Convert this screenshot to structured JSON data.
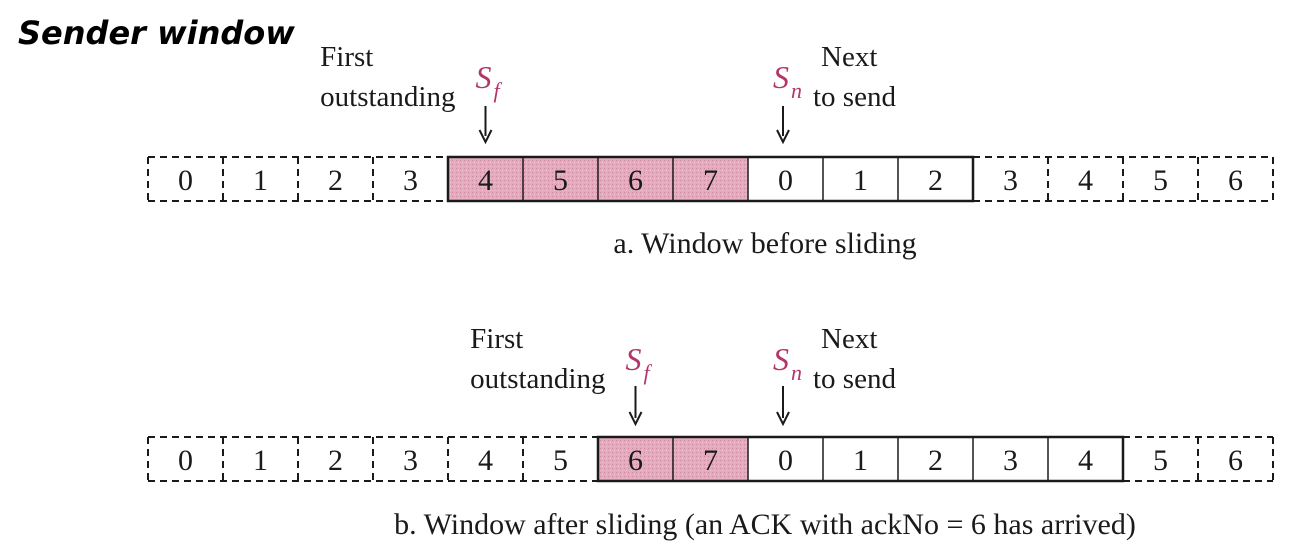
{
  "title": "Sender window",
  "colors": {
    "outstanding_fill": "#e7a9bd",
    "pointer_color": "#b3366b",
    "line_color": "#1a1a1a"
  },
  "panels": [
    {
      "caption": "a. Window before sliding",
      "cells": [
        {
          "label": "0",
          "state": "acknowledged"
        },
        {
          "label": "1",
          "state": "acknowledged"
        },
        {
          "label": "2",
          "state": "acknowledged"
        },
        {
          "label": "3",
          "state": "acknowledged"
        },
        {
          "label": "4",
          "state": "outstanding"
        },
        {
          "label": "5",
          "state": "outstanding"
        },
        {
          "label": "6",
          "state": "outstanding"
        },
        {
          "label": "7",
          "state": "outstanding"
        },
        {
          "label": "0",
          "state": "sendable"
        },
        {
          "label": "1",
          "state": "sendable"
        },
        {
          "label": "2",
          "state": "sendable"
        },
        {
          "label": "3",
          "state": "outside"
        },
        {
          "label": "4",
          "state": "outside"
        },
        {
          "label": "5",
          "state": "outside"
        },
        {
          "label": "6",
          "state": "outside"
        }
      ],
      "sf": {
        "symbol": "S",
        "subscript": "f",
        "cell_index": 4,
        "label_lines": [
          "First",
          "outstanding"
        ]
      },
      "sn": {
        "symbol": "S",
        "subscript": "n",
        "cell_index": 8,
        "label_lines": [
          "Next",
          "to send"
        ]
      }
    },
    {
      "caption": "b. Window after sliding (an ACK with ackNo = 6 has arrived)",
      "cells": [
        {
          "label": "0",
          "state": "acknowledged"
        },
        {
          "label": "1",
          "state": "acknowledged"
        },
        {
          "label": "2",
          "state": "acknowledged"
        },
        {
          "label": "3",
          "state": "acknowledged"
        },
        {
          "label": "4",
          "state": "acknowledged"
        },
        {
          "label": "5",
          "state": "acknowledged"
        },
        {
          "label": "6",
          "state": "outstanding"
        },
        {
          "label": "7",
          "state": "outstanding"
        },
        {
          "label": "0",
          "state": "sendable"
        },
        {
          "label": "1",
          "state": "sendable"
        },
        {
          "label": "2",
          "state": "sendable"
        },
        {
          "label": "3",
          "state": "sendable"
        },
        {
          "label": "4",
          "state": "sendable"
        },
        {
          "label": "5",
          "state": "outside"
        },
        {
          "label": "6",
          "state": "outside"
        }
      ],
      "sf": {
        "symbol": "S",
        "subscript": "f",
        "cell_index": 6,
        "label_lines": [
          "First",
          "outstanding"
        ]
      },
      "sn": {
        "symbol": "S",
        "subscript": "n",
        "cell_index": 8,
        "label_lines": [
          "Next",
          "to send"
        ]
      }
    }
  ]
}
